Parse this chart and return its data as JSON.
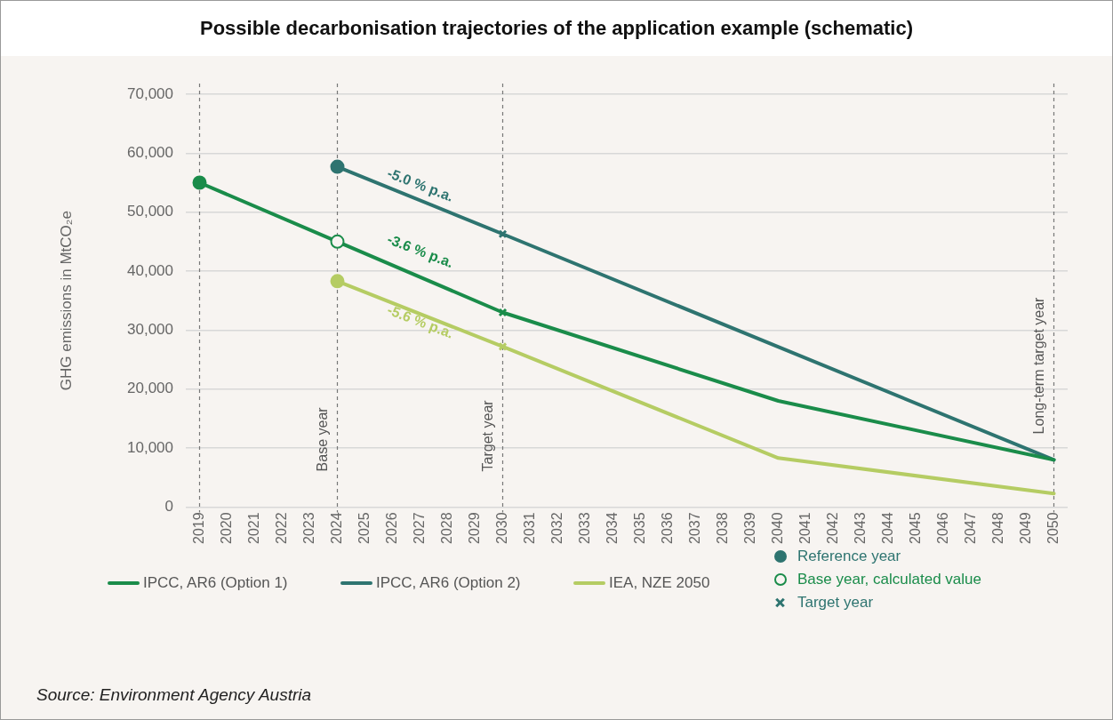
{
  "chart_data": {
    "type": "line",
    "title": "Possible decarbonisation trajectories of the application example (schematic)",
    "ylabel": "GHG emissions in MtCO₂e",
    "series": [
      {
        "name": "IPCC, AR6 (Option 1)",
        "color": "#1a8c4a",
        "x": [
          2019,
          2024,
          2030,
          2040,
          2050
        ],
        "values": [
          55000,
          45000,
          33000,
          18000,
          8000
        ]
      },
      {
        "name": "IPCC, AR6 (Option 2)",
        "color": "#2e7470",
        "x": [
          2024,
          2030,
          2050
        ],
        "values": [
          57700,
          46300,
          8000
        ]
      },
      {
        "name": "IEA, NZE 2050",
        "color": "#b5cc63",
        "x": [
          2024,
          2030,
          2040,
          2050
        ],
        "values": [
          38300,
          27200,
          8300,
          2300
        ]
      },
      {
        "type": "scatter",
        "name": "Reference year",
        "marker": "circle",
        "color": "#2e7470",
        "x": [
          2019,
          2024,
          2024
        ],
        "values": [
          55000,
          57700,
          38300
        ],
        "colors": [
          "#1a8c4a",
          "#2e7470",
          "#b5cc63"
        ]
      },
      {
        "type": "scatter",
        "name": "Base year, calculated value",
        "marker": "circle",
        "color": "#1a8c4a",
        "x": [
          2024
        ],
        "values": [
          45000
        ]
      },
      {
        "type": "scatter",
        "name": "Target year",
        "marker": "cross",
        "color": "#2e7470",
        "x": [
          2030,
          2030,
          2030
        ],
        "values": [
          46300,
          33000,
          27200
        ],
        "colors": [
          "#2e7470",
          "#1a8c4a",
          "#b5cc63"
        ]
      }
    ],
    "xlim": [
      2018.5,
      2050.5
    ],
    "xticks": [
      2019,
      2020,
      2021,
      2022,
      2023,
      2024,
      2025,
      2026,
      2027,
      2028,
      2029,
      2030,
      2031,
      2032,
      2033,
      2034,
      2035,
      2036,
      2037,
      2038,
      2039,
      2040,
      2041,
      2042,
      2043,
      2044,
      2045,
      2046,
      2047,
      2048,
      2049,
      2050
    ],
    "ylim": [
      0,
      70000
    ],
    "yticks": [
      {
        "value": 0,
        "label": "0"
      },
      {
        "value": 10000,
        "label": "10,000"
      },
      {
        "value": 20000,
        "label": "20,000"
      },
      {
        "value": 30000,
        "label": "30,000"
      },
      {
        "value": 40000,
        "label": "40,000"
      },
      {
        "value": 50000,
        "label": "50,000"
      },
      {
        "value": 60000,
        "label": "60,000"
      },
      {
        "value": 70000,
        "label": "70,000"
      }
    ],
    "ref_lines": [
      {
        "axis": "x",
        "value": 2019,
        "label": null,
        "color": "#777777",
        "line_style": "dashed"
      },
      {
        "axis": "x",
        "value": 2024,
        "label": "Base year",
        "color": "#777777",
        "line_style": "dashed"
      },
      {
        "axis": "x",
        "value": 2030,
        "label": "Target year",
        "color": "#777777",
        "line_style": "dashed"
      },
      {
        "axis": "x",
        "value": 2050,
        "label": "Long-term target year",
        "color": "#777777",
        "line_style": "dashed"
      }
    ],
    "annotations": [
      "-5.0 % p.a.",
      "-3.6 % p.a.",
      "-5.6 % p.a.",
      "Source: Environment Agency Austria"
    ],
    "grid": "y",
    "legend": "bottom",
    "line_style": "solid",
    "marker": "none"
  }
}
